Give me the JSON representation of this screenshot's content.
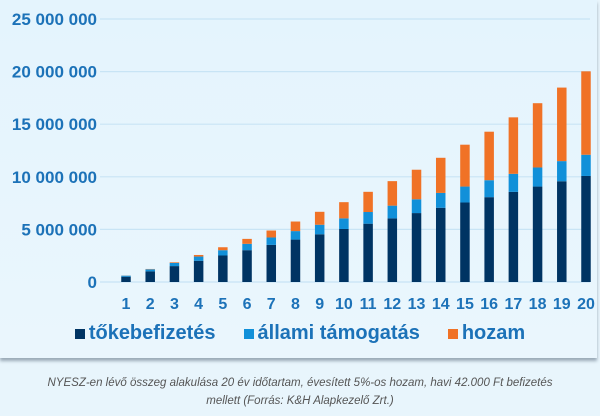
{
  "chart_data": {
    "type": "bar",
    "stacked": true,
    "categories": [
      "1",
      "2",
      "3",
      "4",
      "5",
      "6",
      "7",
      "8",
      "9",
      "10",
      "11",
      "12",
      "13",
      "14",
      "15",
      "16",
      "17",
      "18",
      "19",
      "20"
    ],
    "series": [
      {
        "name": "tőkebefizetés",
        "color": "#003463",
        "values": [
          504000,
          1008000,
          1512000,
          2016000,
          2520000,
          3024000,
          3528000,
          4032000,
          4536000,
          5040000,
          5544000,
          6048000,
          6552000,
          7056000,
          7560000,
          8064000,
          8568000,
          9072000,
          9576000,
          10080000
        ]
      },
      {
        "name": "állami támogatás",
        "color": "#1190d9",
        "values": [
          100800,
          201600,
          302400,
          403200,
          504000,
          604800,
          705600,
          806400,
          907200,
          1008000,
          1108800,
          1209600,
          1310400,
          1411200,
          1512000,
          1612800,
          1713600,
          1814400,
          1915200,
          2016000
        ]
      },
      {
        "name": "hozam",
        "color": "#f07226",
        "values": [
          10000,
          30000,
          60000,
          150000,
          280000,
          470000,
          660000,
          910000,
          1230000,
          1540000,
          1920000,
          2330000,
          2810000,
          3340000,
          3980000,
          4610000,
          5370000,
          6110000,
          6990000,
          7930000
        ]
      }
    ],
    "yticks": [
      "0",
      "5 000 000",
      "10 000 000",
      "15 000 000",
      "20 000 000",
      "25 000 000"
    ],
    "ylim": [
      0,
      25000000
    ],
    "grid": true,
    "legend": "bottom",
    "xlabel": "",
    "ylabel": "",
    "title": ""
  },
  "caption": {
    "line1": "NYESZ-en lévő összeg alakulása 20 év időtartam, évesített 5%-os hozam, havi 42.000 Ft befizetés",
    "line2": "mellett (Forrás: K&H Alapkezelő Zrt.)"
  }
}
